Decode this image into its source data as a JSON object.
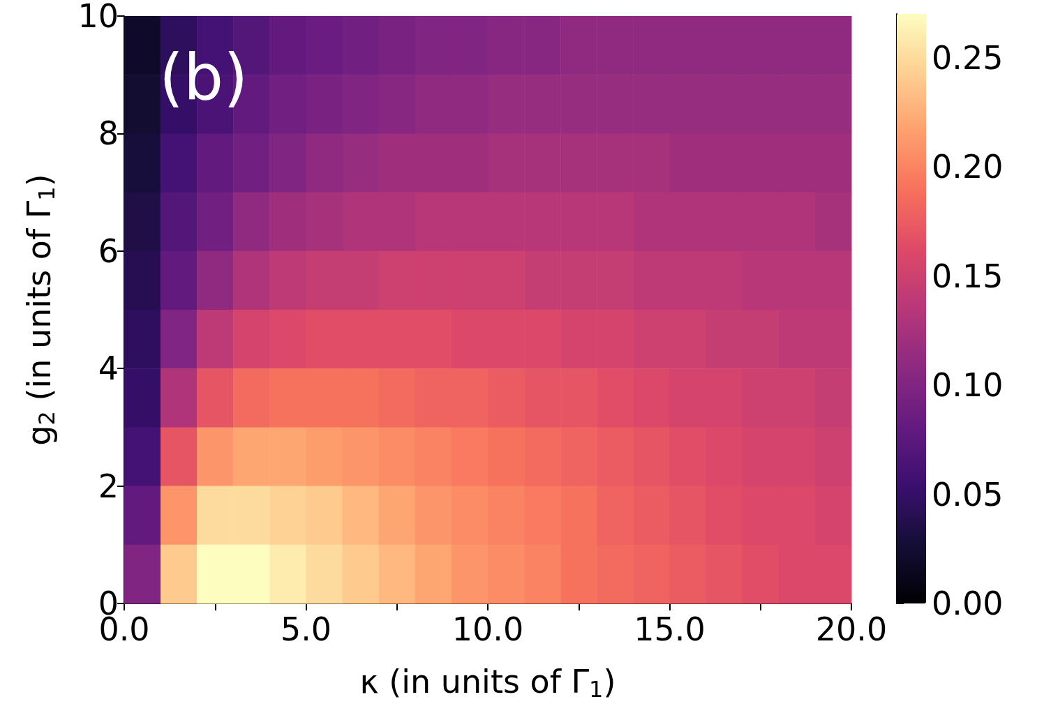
{
  "chart_data": {
    "type": "heatmap",
    "xlabel": "κ (in units of Γ$_{1}$)",
    "ylabel": "g$_{2}$ (in units of Γ$_{1}$)",
    "annotations": [
      "(b)"
    ],
    "x": [
      0.5,
      1.5,
      2.5,
      3.5,
      4.5,
      5.5,
      6.5,
      7.5,
      8.5,
      9.5,
      10.5,
      11.5,
      12.5,
      13.5,
      14.5,
      15.5,
      16.5,
      17.5,
      18.5,
      19.5
    ],
    "y": [
      9.5,
      8.5,
      7.5,
      6.5,
      5.5,
      4.5,
      3.5,
      2.5,
      1.5,
      0.5
    ],
    "xlim": [
      0,
      20
    ],
    "xticks": [
      {
        "value": 0,
        "label": "0.0"
      },
      {
        "value": 2.5,
        "label": null
      },
      {
        "value": 5,
        "label": "5.0"
      },
      {
        "value": 7.5,
        "label": null
      },
      {
        "value": 10,
        "label": "10.0"
      },
      {
        "value": 12.5,
        "label": null
      },
      {
        "value": 15,
        "label": "15.0"
      },
      {
        "value": 17.5,
        "label": null
      },
      {
        "value": 20,
        "label": "20.0"
      }
    ],
    "ylim": [
      0,
      10
    ],
    "yticks": [
      0,
      2,
      4,
      6,
      8,
      10
    ],
    "clim": [
      0,
      0.27
    ],
    "cticks": [
      {
        "value": 0,
        "label": "0.00"
      },
      {
        "value": 0.05,
        "label": "0.05"
      },
      {
        "value": 0.1,
        "label": "0.10"
      },
      {
        "value": 0.15,
        "label": "0.15"
      },
      {
        "value": 0.2,
        "label": "0.20"
      },
      {
        "value": 0.25,
        "label": "0.25"
      }
    ],
    "cells": [
      [
        0.02,
        0.045,
        0.06,
        0.07,
        0.08,
        0.085,
        0.09,
        0.095,
        0.1,
        0.1,
        0.105,
        0.105,
        0.11,
        0.11,
        0.11,
        0.11,
        0.11,
        0.11,
        0.11,
        0.11
      ],
      [
        0.025,
        0.05,
        0.065,
        0.08,
        0.09,
        0.095,
        0.1,
        0.105,
        0.11,
        0.11,
        0.115,
        0.115,
        0.115,
        0.115,
        0.115,
        0.115,
        0.115,
        0.115,
        0.115,
        0.115
      ],
      [
        0.03,
        0.06,
        0.08,
        0.09,
        0.1,
        0.11,
        0.115,
        0.12,
        0.12,
        0.12,
        0.125,
        0.125,
        0.125,
        0.125,
        0.125,
        0.12,
        0.12,
        0.12,
        0.12,
        0.12
      ],
      [
        0.035,
        0.07,
        0.09,
        0.11,
        0.12,
        0.125,
        0.13,
        0.13,
        0.135,
        0.135,
        0.135,
        0.135,
        0.135,
        0.135,
        0.13,
        0.13,
        0.13,
        0.13,
        0.13,
        0.125
      ],
      [
        0.04,
        0.08,
        0.11,
        0.13,
        0.14,
        0.145,
        0.145,
        0.15,
        0.15,
        0.15,
        0.15,
        0.145,
        0.145,
        0.145,
        0.14,
        0.14,
        0.14,
        0.135,
        0.135,
        0.135
      ],
      [
        0.045,
        0.1,
        0.14,
        0.155,
        0.16,
        0.165,
        0.165,
        0.165,
        0.165,
        0.16,
        0.16,
        0.16,
        0.155,
        0.155,
        0.15,
        0.15,
        0.145,
        0.145,
        0.14,
        0.14
      ],
      [
        0.05,
        0.13,
        0.17,
        0.185,
        0.19,
        0.19,
        0.19,
        0.185,
        0.18,
        0.18,
        0.175,
        0.17,
        0.17,
        0.165,
        0.16,
        0.155,
        0.155,
        0.15,
        0.15,
        0.145
      ],
      [
        0.06,
        0.17,
        0.21,
        0.22,
        0.22,
        0.215,
        0.21,
        0.205,
        0.2,
        0.195,
        0.19,
        0.185,
        0.18,
        0.175,
        0.17,
        0.165,
        0.16,
        0.155,
        0.155,
        0.15
      ],
      [
        0.08,
        0.21,
        0.25,
        0.25,
        0.245,
        0.24,
        0.23,
        0.22,
        0.21,
        0.205,
        0.2,
        0.195,
        0.19,
        0.18,
        0.175,
        0.17,
        0.165,
        0.16,
        0.16,
        0.155
      ],
      [
        0.1,
        0.24,
        0.27,
        0.27,
        0.26,
        0.25,
        0.24,
        0.23,
        0.22,
        0.21,
        0.205,
        0.2,
        0.19,
        0.185,
        0.18,
        0.175,
        0.17,
        0.165,
        0.16,
        0.16
      ]
    ]
  }
}
